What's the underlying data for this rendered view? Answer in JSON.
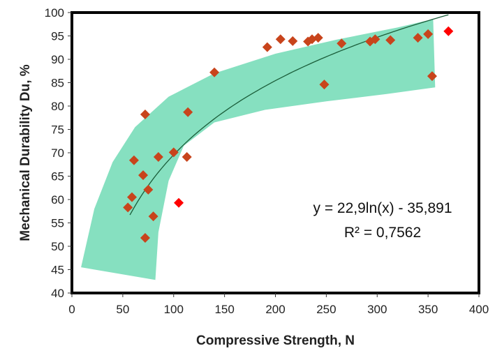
{
  "chart_data": {
    "type": "scatter",
    "xlabel": "Compressive Strength, N",
    "ylabel": "Mechanical Durability Du, %",
    "xlim": [
      0,
      400
    ],
    "ylim": [
      40,
      100
    ],
    "x_ticks": [
      "0",
      "50",
      "100",
      "150",
      "200",
      "250",
      "300",
      "350",
      "400"
    ],
    "y_ticks": [
      "40",
      "45",
      "50",
      "55",
      "60",
      "65",
      "70",
      "75",
      "80",
      "85",
      "90",
      "95",
      "100"
    ],
    "grid": false,
    "colors": {
      "marker": "#c8441c",
      "marker_highlight": "#ff0000",
      "band": "#86e0c0",
      "trendline": "#1b5e3a"
    },
    "series": [
      {
        "marker": "diamond",
        "x": [
          55,
          59,
          61,
          70,
          72,
          75,
          80,
          85,
          72,
          100,
          113,
          114,
          140,
          192,
          205,
          217,
          232,
          236,
          242,
          248,
          265,
          293,
          298,
          313,
          340,
          350,
          354
        ],
        "y": [
          58.3,
          60.5,
          68.4,
          65.2,
          78.2,
          62.1,
          56.4,
          69.1,
          51.8,
          70.1,
          69.1,
          78.7,
          87.2,
          92.6,
          94.3,
          93.9,
          93.8,
          94.3,
          94.6,
          84.6,
          93.4,
          93.8,
          94.3,
          94.1,
          94.6,
          95.4,
          86.4
        ]
      },
      {
        "marker": "diamond",
        "x": [
          105,
          370
        ],
        "y": [
          59.3,
          96.0
        ]
      }
    ],
    "trendline": {
      "type": "log",
      "a": 22.9,
      "b": -35.891,
      "x_range": [
        57,
        370
      ]
    },
    "annotations": [
      "y = 22,9ln(x) - 35,891",
      "R² = 0,7562"
    ]
  }
}
